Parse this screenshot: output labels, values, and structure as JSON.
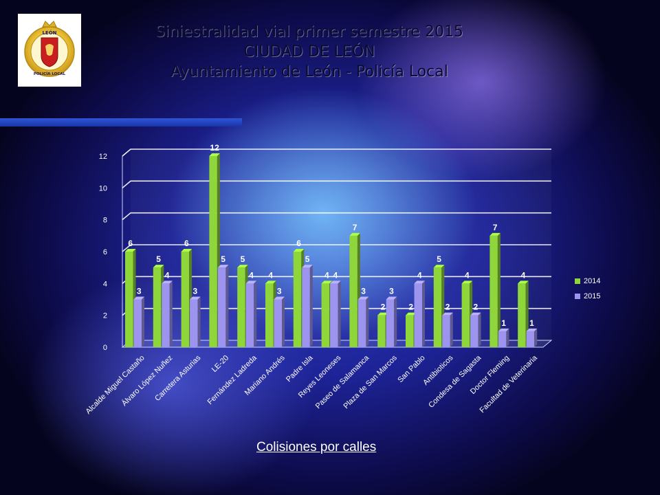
{
  "header": {
    "title_line1": "Siniestralidad vial primer semestre 2015",
    "title_line2": "CIUDAD DE LEÓN",
    "title_line3": "Ayuntamiento de León - Policía Local",
    "logo_icon": "policia-local-leon-badge-icon",
    "logo_top_text": "LEÓN",
    "logo_bottom_text": "POLICÍA LOCAL"
  },
  "caption": "Colisiones por calles",
  "chart_data": {
    "type": "bar",
    "categories": [
      "Alcalde Miguel Castaño",
      "Álvaro López Nuñez",
      "Carretera Asturias",
      "LE-20",
      "Fernández Ladreda",
      "Mariano Andrés",
      "Padre Isla",
      "Reyes Leoneses",
      "Paseo de Salamanca",
      "Plaza de San Marcos",
      "San  Pablo",
      "Antibioticos",
      "Condesa de Sagasta",
      "Doctor Fleming",
      "Facultad de Veterinaria"
    ],
    "series": [
      {
        "name": "2014",
        "values": [
          6,
          5,
          6,
          12,
          5,
          4,
          6,
          4,
          7,
          2,
          2,
          5,
          4,
          7,
          4
        ],
        "color": "#8fd63a"
      },
      {
        "name": "2015",
        "values": [
          3,
          4,
          3,
          5,
          4,
          3,
          5,
          4,
          3,
          3,
          4,
          2,
          2,
          1,
          1
        ],
        "color": "#9c94ee"
      }
    ],
    "yticks": [
      "0",
      "2",
      "4",
      "6",
      "8",
      "10",
      "12"
    ],
    "ylim": [
      0,
      12
    ],
    "grid": true,
    "legend": "right",
    "title": "",
    "xlabel": "",
    "ylabel": ""
  }
}
